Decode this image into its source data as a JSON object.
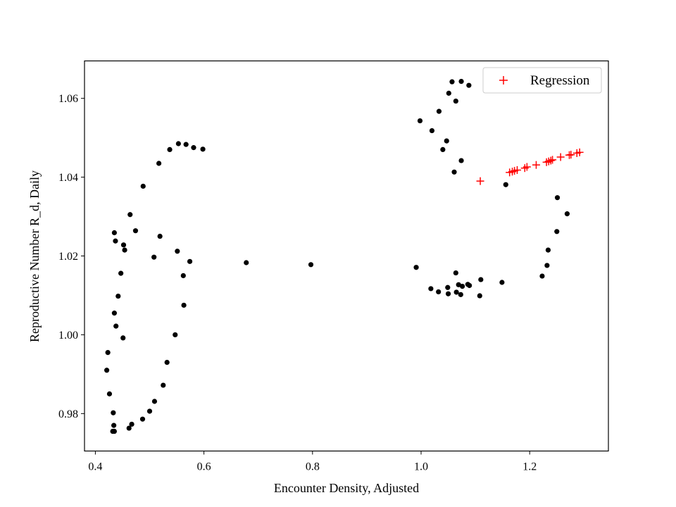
{
  "chart_data": {
    "type": "scatter",
    "title": "",
    "xlabel": "Encounter Density, Adjusted",
    "ylabel": "Reproductive Number R_d, Daily",
    "xlim": [
      0.38,
      1.345
    ],
    "ylim": [
      0.9705,
      1.0695
    ],
    "xticks": [
      0.4,
      0.6,
      0.8,
      1.0,
      1.2
    ],
    "xtick_labels": [
      "0.4",
      "0.6",
      "0.8",
      "1.0",
      "1.2"
    ],
    "yticks": [
      0.98,
      1.0,
      1.02,
      1.04,
      1.06
    ],
    "ytick_labels": [
      "0.98",
      "1.00",
      "1.02",
      "1.04",
      "1.06"
    ],
    "grid": false,
    "legend": {
      "placement": "top-right",
      "entries": [
        "Regression"
      ]
    },
    "series": [
      {
        "marker": "dot",
        "color": "#000000",
        "points": [
          [
            0.421,
            0.991
          ],
          [
            0.423,
            0.9955
          ],
          [
            0.426,
            0.985
          ],
          [
            0.432,
            0.9755
          ],
          [
            0.433,
            0.9802
          ],
          [
            0.434,
            0.977
          ],
          [
            0.435,
            0.9755
          ],
          [
            0.435,
            1.0055
          ],
          [
            0.435,
            1.0259
          ],
          [
            0.437,
            1.0238
          ],
          [
            0.438,
            1.0022
          ],
          [
            0.442,
            1.0098
          ],
          [
            0.447,
            1.0156
          ],
          [
            0.451,
            0.9992
          ],
          [
            0.452,
            1.0228
          ],
          [
            0.454,
            1.0215
          ],
          [
            0.462,
            0.9763
          ],
          [
            0.464,
            1.0305
          ],
          [
            0.467,
            0.9773
          ],
          [
            0.474,
            1.0264
          ],
          [
            0.487,
            0.9786
          ],
          [
            0.488,
            1.0377
          ],
          [
            0.5,
            0.9806
          ],
          [
            0.508,
            1.0197
          ],
          [
            0.509,
            0.9831
          ],
          [
            0.517,
            1.0435
          ],
          [
            0.519,
            1.025
          ],
          [
            0.525,
            0.9872
          ],
          [
            0.532,
            0.993
          ],
          [
            0.537,
            1.047
          ],
          [
            0.547,
            1.0
          ],
          [
            0.551,
            1.0212
          ],
          [
            0.553,
            1.0485
          ],
          [
            0.562,
            1.015
          ],
          [
            0.563,
            1.0075
          ],
          [
            0.567,
            1.0483
          ],
          [
            0.574,
            1.0186
          ],
          [
            0.581,
            1.0475
          ],
          [
            0.598,
            1.0471
          ],
          [
            0.678,
            1.0183
          ],
          [
            0.797,
            1.0178
          ],
          [
            0.991,
            1.0171
          ],
          [
            0.998,
            1.0543
          ],
          [
            1.018,
            1.0117
          ],
          [
            1.02,
            1.0518
          ],
          [
            1.032,
            1.0109
          ],
          [
            1.033,
            1.0567
          ],
          [
            1.04,
            1.047
          ],
          [
            1.047,
            1.0492
          ],
          [
            1.049,
            1.012
          ],
          [
            1.05,
            1.0104
          ],
          [
            1.051,
            1.0613
          ],
          [
            1.057,
            1.0642
          ],
          [
            1.061,
            1.0413
          ],
          [
            1.064,
            1.0157
          ],
          [
            1.064,
            1.0593
          ],
          [
            1.065,
            1.0108
          ],
          [
            1.069,
            1.0127
          ],
          [
            1.073,
            1.0102
          ],
          [
            1.074,
            1.0442
          ],
          [
            1.074,
            1.0643
          ],
          [
            1.076,
            1.0123
          ],
          [
            1.086,
            1.0128
          ],
          [
            1.088,
            1.0633
          ],
          [
            1.089,
            1.0125
          ],
          [
            1.108,
            1.0099
          ],
          [
            1.11,
            1.014
          ],
          [
            1.149,
            1.0133
          ],
          [
            1.156,
            1.0381
          ],
          [
            1.223,
            1.0149
          ],
          [
            1.232,
            1.0176
          ],
          [
            1.234,
            1.0215
          ],
          [
            1.25,
            1.0262
          ],
          [
            1.251,
            1.0348
          ],
          [
            1.269,
            1.0307
          ]
        ]
      },
      {
        "name": "Regression",
        "marker": "plus",
        "color": "#ff0000",
        "points": [
          [
            1.109,
            1.039
          ],
          [
            1.163,
            1.0412
          ],
          [
            1.168,
            1.0414
          ],
          [
            1.172,
            1.0416
          ],
          [
            1.177,
            1.0418
          ],
          [
            1.191,
            1.0423
          ],
          [
            1.195,
            1.0426
          ],
          [
            1.212,
            1.0431
          ],
          [
            1.231,
            1.0438
          ],
          [
            1.235,
            1.044
          ],
          [
            1.239,
            1.0442
          ],
          [
            1.242,
            1.0444
          ],
          [
            1.257,
            1.0451
          ],
          [
            1.273,
            1.0456
          ],
          [
            1.276,
            1.0457
          ],
          [
            1.287,
            1.0461
          ],
          [
            1.292,
            1.0463
          ]
        ]
      }
    ]
  }
}
